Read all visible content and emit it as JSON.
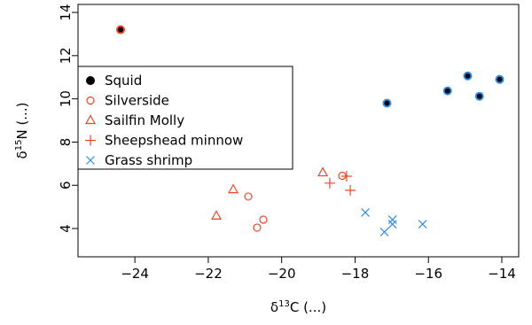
{
  "chart_data": {
    "type": "scatter",
    "x_label": {
      "prefix": "δ",
      "sup": "13",
      "rest": "C (...)"
    },
    "y_label": {
      "prefix": "δ",
      "sup": "15",
      "rest": "N (...)"
    },
    "xlim": [
      -25.55,
      -13.54
    ],
    "ylim": [
      2.69,
      14.37
    ],
    "xticks": [
      {
        "value": -24,
        "label": "−24"
      },
      {
        "value": -22,
        "label": "−22"
      },
      {
        "value": -20,
        "label": "−20"
      },
      {
        "value": -18,
        "label": "−18"
      },
      {
        "value": -16,
        "label": "−16"
      },
      {
        "value": -14,
        "label": "−14"
      }
    ],
    "yticks": [
      4,
      6,
      8,
      10,
      12,
      14
    ],
    "legend": "upper-left",
    "series": [
      {
        "name": "Squid",
        "color": "#000000",
        "marker": "filled-circle",
        "edge_colors": [
          "#e8482a",
          "#2f8de4",
          "#2f8de4",
          "#2f8de4",
          "#2f8de4",
          "#2f8de4"
        ],
        "x": [
          -24.39,
          -17.13,
          -15.48,
          -14.93,
          -14.61,
          -14.06
        ],
        "values": [
          13.2,
          9.8,
          10.37,
          11.06,
          10.12,
          10.9
        ]
      },
      {
        "name": "Silverside",
        "color": "#e8482a",
        "marker": "circle",
        "x": [
          -20.91,
          -20.5,
          -20.67,
          -18.35
        ],
        "values": [
          5.48,
          4.41,
          4.04,
          6.44
        ]
      },
      {
        "name": "Sailfin Molly",
        "color": "#e8482a",
        "marker": "triangle",
        "x": [
          -21.78,
          -21.32,
          -18.88
        ],
        "values": [
          4.58,
          5.8,
          6.58
        ]
      },
      {
        "name": "Sheepshead minnow",
        "color": "#e8482a",
        "marker": "plus",
        "x": [
          -18.69,
          -18.23,
          -18.13
        ],
        "values": [
          6.1,
          6.42,
          5.77
        ]
      },
      {
        "name": "Grass shrimp",
        "color": "#2f8de4",
        "marker": "cross",
        "x": [
          -17.72,
          -16.98,
          -16.98,
          -17.2,
          -16.16
        ],
        "values": [
          4.74,
          4.41,
          4.2,
          3.84,
          4.2
        ]
      }
    ]
  }
}
